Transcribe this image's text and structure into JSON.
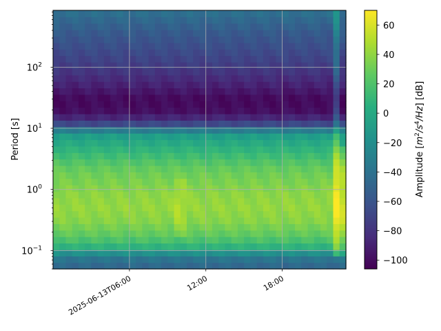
{
  "chart_data": {
    "type": "heatmap",
    "title": "",
    "xlabel": "",
    "ylabel": "Period [s]",
    "yscale": "log",
    "ylim": [
      0.05,
      850
    ],
    "x_tick_labels": [
      "2025-06-13T06:00",
      "12:00",
      "18:00"
    ],
    "y_tick_labels": [
      "10",
      "10",
      "10",
      "10"
    ],
    "y_tick_exponents": [
      "−1",
      "0",
      "1",
      "2"
    ],
    "colorbar": {
      "label_prefix": "Amplitude [",
      "label_unit_m": "m",
      "label_unit_m_exp": "2",
      "label_unit_s": "/s",
      "label_unit_s_exp": "4",
      "label_unit_hz": "/Hz",
      "label_suffix": "] [dB]",
      "range": [
        -106,
        70
      ],
      "ticks": [
        "60",
        "40",
        "20",
        "0",
        "−20",
        "−40",
        "−60",
        "−80",
        "−100"
      ],
      "colormap": "viridis"
    },
    "grid": true,
    "time_columns": [
      "00:00",
      "00:30",
      "01:00",
      "01:30",
      "02:00",
      "02:30",
      "03:00",
      "03:30",
      "04:00",
      "04:30",
      "05:00",
      "05:30",
      "06:00",
      "06:30",
      "07:00",
      "07:30",
      "08:00",
      "08:30",
      "09:00",
      "09:30",
      "10:00",
      "10:30",
      "11:00",
      "11:30",
      "12:00",
      "12:30",
      "13:00",
      "13:30",
      "14:00",
      "14:30",
      "15:00",
      "15:30",
      "16:00",
      "16:30",
      "17:00",
      "17:30",
      "18:00",
      "18:30",
      "19:00",
      "19:30",
      "20:00",
      "20:30",
      "21:00",
      "21:30",
      "22:00",
      "22:30",
      "23:00"
    ],
    "period_profile": [
      {
        "period": 0.05,
        "db": -50
      },
      {
        "period": 0.07,
        "db": -40
      },
      {
        "period": 0.09,
        "db": -20
      },
      {
        "period": 0.12,
        "db": 10
      },
      {
        "period": 0.17,
        "db": 25
      },
      {
        "period": 0.3,
        "db": 38
      },
      {
        "period": 0.5,
        "db": 42
      },
      {
        "period": 0.8,
        "db": 40
      },
      {
        "period": 1.2,
        "db": 36
      },
      {
        "period": 2.0,
        "db": 30
      },
      {
        "period": 3.0,
        "db": 20
      },
      {
        "period": 5.0,
        "db": 5
      },
      {
        "period": 8.0,
        "db": -10
      },
      {
        "period": 10.0,
        "db": -40
      },
      {
        "period": 13.0,
        "db": -80
      },
      {
        "period": 20.0,
        "db": -100
      },
      {
        "period": 30.0,
        "db": -102
      },
      {
        "period": 50.0,
        "db": -90
      },
      {
        "period": 100.0,
        "db": -75
      },
      {
        "period": 200.0,
        "db": -65
      },
      {
        "period": 400.0,
        "db": -55
      },
      {
        "period": 850.0,
        "db": -40
      }
    ],
    "events": [
      {
        "time": "09:30",
        "db_boost": 8,
        "min_period": 0.15,
        "max_period": 1.5
      },
      {
        "time": "10:00",
        "db_boost": 6,
        "min_period": 0.15,
        "max_period": 1.5
      },
      {
        "time": "22:00",
        "db_boost": 28,
        "min_period": 0.08,
        "max_period": 850
      },
      {
        "time": "22:30",
        "db_boost": 16,
        "min_period": 0.08,
        "max_period": 5
      }
    ]
  }
}
